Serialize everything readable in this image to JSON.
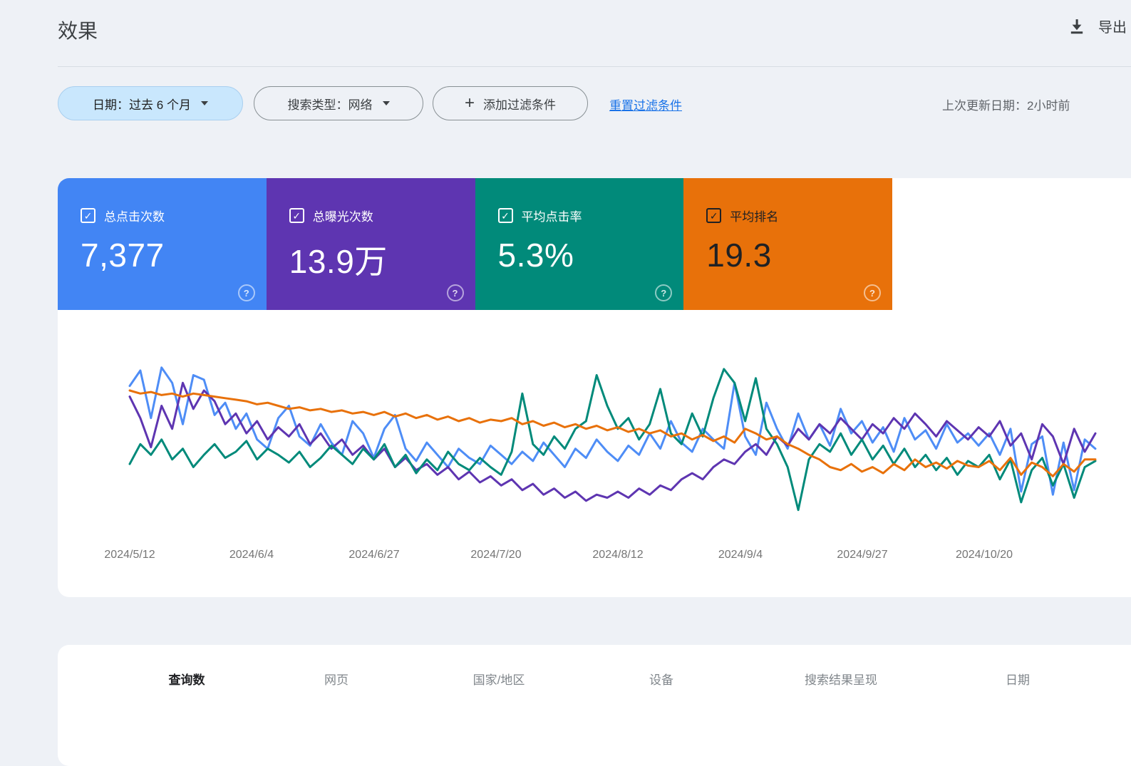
{
  "page": {
    "title": "效果",
    "export_label": "导出",
    "background_color": "#eef1f6"
  },
  "filters": {
    "date_chip": "日期：过去 6 个月",
    "type_chip": "搜索类型：网络",
    "add_filter_label": "添加过滤条件",
    "reset_link": "重置过滤条件",
    "last_updated": "上次更新日期：2小时前",
    "link_color": "#1a73e8",
    "date_chip_bg": "#c9e7fd"
  },
  "metrics": [
    {
      "label": "总点击次数",
      "value": "7,377",
      "checked": true,
      "color": "#4285f4",
      "text_color": "#ffffff"
    },
    {
      "label": "总曝光次数",
      "value": "13.9万",
      "checked": true,
      "color": "#5e35b1",
      "text_color": "#ffffff"
    },
    {
      "label": "平均点击率",
      "value": "5.3%",
      "checked": true,
      "color": "#018a7a",
      "text_color": "#ffffff"
    },
    {
      "label": "平均排名",
      "value": "19.3",
      "checked": true,
      "color": "#e8710a",
      "text_color": "#202124"
    }
  ],
  "tabs": [
    {
      "label": "查询数",
      "active": true
    },
    {
      "label": "网页",
      "active": false
    },
    {
      "label": "国家/地区",
      "active": false
    },
    {
      "label": "设备",
      "active": false
    },
    {
      "label": "搜索结果呈现",
      "active": false
    },
    {
      "label": "日期",
      "active": false
    }
  ],
  "chart_data": {
    "type": "line",
    "title": "",
    "xlabel": "",
    "ylabel": "",
    "grid": false,
    "legend_position": "none (series colors match the metric cards above)",
    "x_axis_note": "daily points, 2024/5/12 through ~2024/11/10; y axis unlabeled in UI, values below are relative 0-100 estimates read from line heights",
    "x_tick_labels": [
      "2024/5/12",
      "2024/6/4",
      "2024/6/27",
      "2024/7/20",
      "2024/8/12",
      "2024/9/4",
      "2024/9/27",
      "2024/10/20"
    ],
    "ylim": [
      0,
      100
    ],
    "series": [
      {
        "key": "clicks",
        "name": "总点击次数",
        "color": "#4e8df6",
        "values": [
          83,
          93,
          62,
          95,
          85,
          58,
          90,
          87,
          64,
          72,
          55,
          65,
          48,
          42,
          62,
          70,
          50,
          44,
          58,
          46,
          38,
          60,
          52,
          36,
          55,
          64,
          42,
          34,
          46,
          38,
          30,
          42,
          36,
          32,
          44,
          38,
          32,
          40,
          34,
          46,
          38,
          30,
          42,
          36,
          48,
          40,
          34,
          44,
          38,
          52,
          42,
          60,
          46,
          40,
          55,
          48,
          42,
          85,
          50,
          38,
          72,
          55,
          42,
          65,
          48,
          58,
          44,
          68,
          52,
          60,
          46,
          56,
          40,
          62,
          48,
          54,
          42,
          58,
          46,
          52,
          44,
          52,
          38,
          55,
          14,
          45,
          50,
          12,
          46,
          15,
          48,
          42
        ]
      },
      {
        "key": "impressions",
        "name": "总曝光次数",
        "color": "#5e35b1",
        "values": [
          76,
          62,
          43,
          70,
          55,
          85,
          68,
          80,
          73,
          58,
          65,
          52,
          60,
          48,
          56,
          50,
          58,
          45,
          52,
          42,
          48,
          38,
          44,
          35,
          42,
          30,
          36,
          28,
          32,
          25,
          30,
          22,
          27,
          20,
          24,
          18,
          22,
          15,
          19,
          12,
          16,
          10,
          14,
          8,
          12,
          10,
          14,
          10,
          16,
          12,
          18,
          15,
          22,
          26,
          22,
          30,
          35,
          32,
          40,
          45,
          38,
          50,
          44,
          55,
          48,
          58,
          52,
          62,
          55,
          48,
          58,
          52,
          62,
          55,
          65,
          58,
          50,
          60,
          54,
          48,
          56,
          50,
          60,
          44,
          52,
          35,
          58,
          50,
          32,
          55,
          40,
          52
        ]
      },
      {
        "key": "ctr",
        "name": "平均点击率",
        "color": "#018a7a",
        "values": [
          32,
          45,
          38,
          48,
          35,
          42,
          30,
          38,
          45,
          36,
          40,
          47,
          35,
          42,
          38,
          33,
          40,
          30,
          36,
          44,
          38,
          32,
          42,
          35,
          45,
          30,
          38,
          26,
          35,
          28,
          40,
          32,
          28,
          36,
          30,
          25,
          40,
          78,
          45,
          38,
          50,
          42,
          55,
          60,
          90,
          70,
          55,
          62,
          48,
          58,
          81,
          52,
          45,
          65,
          50,
          75,
          94,
          85,
          60,
          88,
          55,
          45,
          30,
          2,
          35,
          45,
          40,
          52,
          38,
          48,
          35,
          44,
          32,
          42,
          30,
          38,
          28,
          36,
          25,
          34,
          30,
          38,
          22,
          35,
          7,
          28,
          36,
          18,
          32,
          10,
          30,
          34
        ]
      },
      {
        "key": "position",
        "name": "平均排名",
        "color": "#e8710a",
        "values": [
          80,
          78,
          79,
          77,
          78,
          76,
          78,
          77,
          76,
          75,
          74,
          73,
          71,
          72,
          70,
          68,
          69,
          67,
          68,
          66,
          67,
          65,
          66,
          64,
          66,
          63,
          65,
          62,
          64,
          61,
          63,
          60,
          62,
          59,
          61,
          60,
          62,
          58,
          60,
          57,
          59,
          56,
          58,
          55,
          57,
          54,
          56,
          53,
          55,
          52,
          54,
          50,
          52,
          48,
          51,
          47,
          50,
          46,
          55,
          52,
          48,
          50,
          45,
          42,
          38,
          35,
          30,
          28,
          32,
          27,
          30,
          26,
          32,
          28,
          35,
          30,
          33,
          29,
          34,
          31,
          30,
          34,
          28,
          36,
          25,
          33,
          30,
          24,
          32,
          27,
          35,
          35
        ]
      }
    ]
  }
}
